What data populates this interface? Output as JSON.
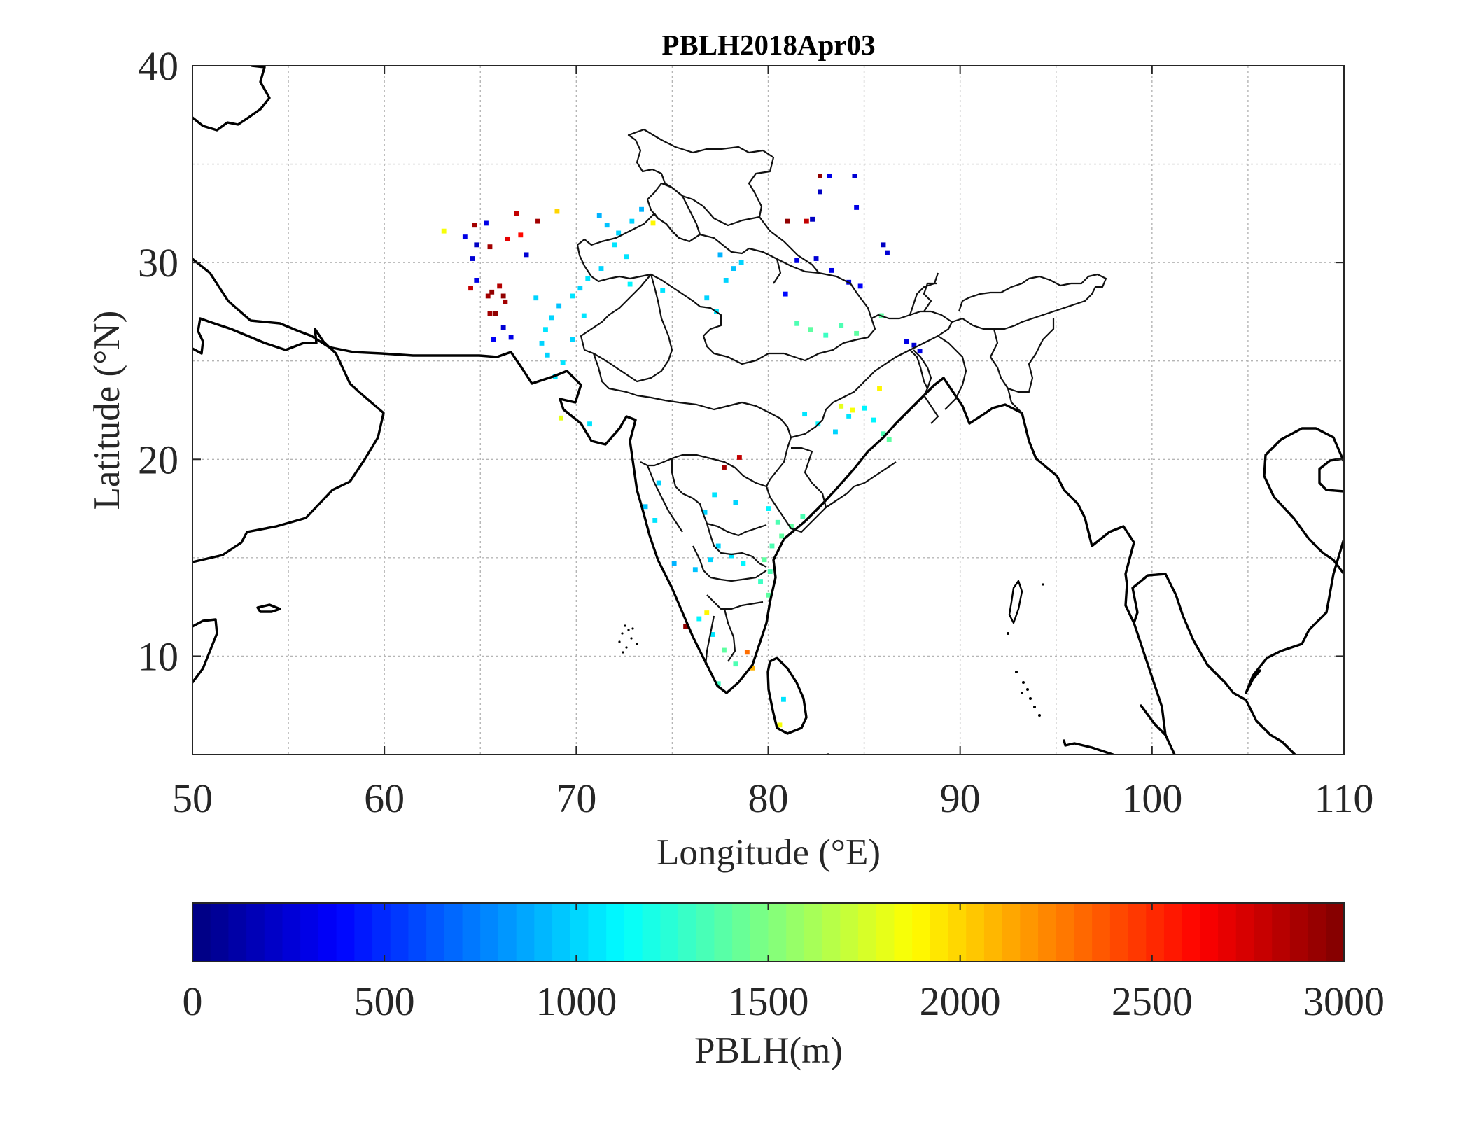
{
  "title": "PBLH2018Apr03",
  "xlabel": "Longitude (°E)",
  "ylabel": "Latitude (°N)",
  "colorbar_label": "PBLH(m)",
  "colormap": "jet",
  "chart_data": {
    "type": "heatmap",
    "title": "PBLH2018Apr03",
    "xlabel": "Longitude (°E)",
    "ylabel": "Latitude (°N)",
    "xlim": [
      50,
      110
    ],
    "ylim": [
      5,
      40
    ],
    "xticks": [
      50,
      60,
      70,
      80,
      90,
      100,
      110
    ],
    "yticks": [
      10,
      20,
      30,
      40
    ],
    "grid": true,
    "colorbar": {
      "label": "PBLH(m)",
      "range": [
        0,
        3000
      ],
      "ticks": [
        0,
        500,
        1000,
        1500,
        2000,
        2500,
        3000
      ],
      "position": "bottom"
    },
    "cell_size_deg": 0.25,
    "points": [
      {
        "lon": 65.4,
        "lat": 28.3,
        "pblh": 2900
      },
      {
        "lon": 65.6,
        "lat": 28.5,
        "pblh": 2950
      },
      {
        "lon": 66.0,
        "lat": 28.8,
        "pblh": 2850
      },
      {
        "lon": 66.2,
        "lat": 28.3,
        "pblh": 2950
      },
      {
        "lon": 65.8,
        "lat": 27.4,
        "pblh": 2950
      },
      {
        "lon": 65.5,
        "lat": 27.4,
        "pblh": 2900
      },
      {
        "lon": 66.3,
        "lat": 28.0,
        "pblh": 2900
      },
      {
        "lon": 65.5,
        "lat": 30.8,
        "pblh": 2900
      },
      {
        "lon": 66.4,
        "lat": 31.2,
        "pblh": 2700
      },
      {
        "lon": 67.1,
        "lat": 31.4,
        "pblh": 2600
      },
      {
        "lon": 66.9,
        "lat": 32.5,
        "pblh": 2800
      },
      {
        "lon": 64.7,
        "lat": 31.9,
        "pblh": 2900
      },
      {
        "lon": 64.5,
        "lat": 28.7,
        "pblh": 2800
      },
      {
        "lon": 64.2,
        "lat": 31.3,
        "pblh": 300
      },
      {
        "lon": 64.8,
        "lat": 30.9,
        "pblh": 200
      },
      {
        "lon": 65.3,
        "lat": 32.0,
        "pblh": 300
      },
      {
        "lon": 64.6,
        "lat": 30.2,
        "pblh": 250
      },
      {
        "lon": 66.2,
        "lat": 26.7,
        "pblh": 250
      },
      {
        "lon": 66.6,
        "lat": 26.2,
        "pblh": 300
      },
      {
        "lon": 65.7,
        "lat": 26.1,
        "pblh": 350
      },
      {
        "lon": 64.8,
        "lat": 29.1,
        "pblh": 300
      },
      {
        "lon": 67.4,
        "lat": 30.4,
        "pblh": 250
      },
      {
        "lon": 63.1,
        "lat": 31.6,
        "pblh": 1850
      },
      {
        "lon": 68.0,
        "lat": 32.1,
        "pblh": 2900
      },
      {
        "lon": 69.0,
        "lat": 32.6,
        "pblh": 2000
      },
      {
        "lon": 72.2,
        "lat": 31.5,
        "pblh": 1000
      },
      {
        "lon": 72.0,
        "lat": 30.9,
        "pblh": 1050
      },
      {
        "lon": 71.6,
        "lat": 31.9,
        "pblh": 950
      },
      {
        "lon": 71.2,
        "lat": 32.4,
        "pblh": 900
      },
      {
        "lon": 72.9,
        "lat": 32.1,
        "pblh": 1000
      },
      {
        "lon": 73.4,
        "lat": 32.7,
        "pblh": 900
      },
      {
        "lon": 72.6,
        "lat": 30.3,
        "pblh": 1050
      },
      {
        "lon": 71.3,
        "lat": 29.7,
        "pblh": 1000
      },
      {
        "lon": 70.6,
        "lat": 29.2,
        "pblh": 1050
      },
      {
        "lon": 70.2,
        "lat": 28.7,
        "pblh": 1000
      },
      {
        "lon": 69.8,
        "lat": 28.3,
        "pblh": 1050
      },
      {
        "lon": 69.1,
        "lat": 27.8,
        "pblh": 950
      },
      {
        "lon": 68.7,
        "lat": 27.2,
        "pblh": 1000
      },
      {
        "lon": 68.4,
        "lat": 26.6,
        "pblh": 1050
      },
      {
        "lon": 68.2,
        "lat": 25.9,
        "pblh": 1000
      },
      {
        "lon": 68.5,
        "lat": 25.3,
        "pblh": 1000
      },
      {
        "lon": 69.3,
        "lat": 24.9,
        "pblh": 1050
      },
      {
        "lon": 69.8,
        "lat": 26.1,
        "pblh": 1000
      },
      {
        "lon": 70.4,
        "lat": 27.3,
        "pblh": 1050
      },
      {
        "lon": 67.9,
        "lat": 28.2,
        "pblh": 1000
      },
      {
        "lon": 68.9,
        "lat": 24.2,
        "pblh": 1050
      },
      {
        "lon": 72.8,
        "lat": 28.9,
        "pblh": 1100
      },
      {
        "lon": 74.5,
        "lat": 28.6,
        "pblh": 1050
      },
      {
        "lon": 76.8,
        "lat": 28.2,
        "pblh": 1000
      },
      {
        "lon": 77.3,
        "lat": 27.5,
        "pblh": 1050
      },
      {
        "lon": 77.8,
        "lat": 29.1,
        "pblh": 1000
      },
      {
        "lon": 78.2,
        "lat": 29.7,
        "pblh": 950
      },
      {
        "lon": 77.5,
        "lat": 30.4,
        "pblh": 900
      },
      {
        "lon": 78.6,
        "lat": 30.0,
        "pblh": 1000
      },
      {
        "lon": 80.9,
        "lat": 28.4,
        "pblh": 400
      },
      {
        "lon": 81.5,
        "lat": 30.1,
        "pblh": 300
      },
      {
        "lon": 82.5,
        "lat": 30.2,
        "pblh": 250
      },
      {
        "lon": 83.3,
        "lat": 29.6,
        "pblh": 300
      },
      {
        "lon": 84.2,
        "lat": 29.0,
        "pblh": 300
      },
      {
        "lon": 84.8,
        "lat": 28.8,
        "pblh": 350
      },
      {
        "lon": 86.0,
        "lat": 30.9,
        "pblh": 200
      },
      {
        "lon": 86.2,
        "lat": 30.5,
        "pblh": 250
      },
      {
        "lon": 82.7,
        "lat": 33.6,
        "pblh": 200
      },
      {
        "lon": 83.2,
        "lat": 34.4,
        "pblh": 300
      },
      {
        "lon": 84.5,
        "lat": 34.4,
        "pblh": 250
      },
      {
        "lon": 84.6,
        "lat": 32.8,
        "pblh": 300
      },
      {
        "lon": 82.3,
        "lat": 32.2,
        "pblh": 200
      },
      {
        "lon": 82.7,
        "lat": 34.4,
        "pblh": 2950
      },
      {
        "lon": 82.0,
        "lat": 32.1,
        "pblh": 2800
      },
      {
        "lon": 81.0,
        "lat": 32.1,
        "pblh": 2950
      },
      {
        "lon": 81.5,
        "lat": 26.9,
        "pblh": 1350
      },
      {
        "lon": 82.2,
        "lat": 26.6,
        "pblh": 1400
      },
      {
        "lon": 83.0,
        "lat": 26.3,
        "pblh": 1300
      },
      {
        "lon": 83.8,
        "lat": 26.8,
        "pblh": 1350
      },
      {
        "lon": 84.6,
        "lat": 26.4,
        "pblh": 1400
      },
      {
        "lon": 85.9,
        "lat": 27.3,
        "pblh": 1400
      },
      {
        "lon": 87.2,
        "lat": 26.0,
        "pblh": 300
      },
      {
        "lon": 87.6,
        "lat": 25.8,
        "pblh": 250
      },
      {
        "lon": 87.9,
        "lat": 25.5,
        "pblh": 300
      },
      {
        "lon": 81.9,
        "lat": 22.3,
        "pblh": 1050
      },
      {
        "lon": 82.6,
        "lat": 21.8,
        "pblh": 1100
      },
      {
        "lon": 83.5,
        "lat": 21.4,
        "pblh": 1000
      },
      {
        "lon": 84.2,
        "lat": 22.2,
        "pblh": 1050
      },
      {
        "lon": 85.0,
        "lat": 22.6,
        "pblh": 1100
      },
      {
        "lon": 85.5,
        "lat": 22.0,
        "pblh": 1100
      },
      {
        "lon": 86.0,
        "lat": 21.3,
        "pblh": 1350
      },
      {
        "lon": 86.3,
        "lat": 21.0,
        "pblh": 1400
      },
      {
        "lon": 83.8,
        "lat": 22.7,
        "pblh": 1800
      },
      {
        "lon": 84.4,
        "lat": 22.5,
        "pblh": 1850
      },
      {
        "lon": 85.8,
        "lat": 23.6,
        "pblh": 1900
      },
      {
        "lon": 80.0,
        "lat": 17.5,
        "pblh": 1100
      },
      {
        "lon": 80.5,
        "lat": 16.8,
        "pblh": 1350
      },
      {
        "lon": 81.2,
        "lat": 16.6,
        "pblh": 1400
      },
      {
        "lon": 81.8,
        "lat": 17.1,
        "pblh": 1350
      },
      {
        "lon": 80.7,
        "lat": 16.1,
        "pblh": 1400
      },
      {
        "lon": 80.2,
        "lat": 15.6,
        "pblh": 1350
      },
      {
        "lon": 79.8,
        "lat": 14.9,
        "pblh": 1400
      },
      {
        "lon": 80.1,
        "lat": 14.3,
        "pblh": 1350
      },
      {
        "lon": 79.6,
        "lat": 13.8,
        "pblh": 1300
      },
      {
        "lon": 80.0,
        "lat": 13.1,
        "pblh": 1400
      },
      {
        "lon": 77.4,
        "lat": 15.6,
        "pblh": 1000
      },
      {
        "lon": 78.1,
        "lat": 15.1,
        "pblh": 1050
      },
      {
        "lon": 78.7,
        "lat": 14.7,
        "pblh": 1100
      },
      {
        "lon": 77.0,
        "lat": 14.9,
        "pblh": 1000
      },
      {
        "lon": 76.2,
        "lat": 14.4,
        "pblh": 950
      },
      {
        "lon": 75.1,
        "lat": 14.7,
        "pblh": 900
      },
      {
        "lon": 78.3,
        "lat": 17.8,
        "pblh": 1000
      },
      {
        "lon": 77.2,
        "lat": 18.2,
        "pblh": 1050
      },
      {
        "lon": 76.7,
        "lat": 17.3,
        "pblh": 1000
      },
      {
        "lon": 74.1,
        "lat": 16.9,
        "pblh": 1050
      },
      {
        "lon": 74.3,
        "lat": 18.8,
        "pblh": 1000
      },
      {
        "lon": 73.6,
        "lat": 17.6,
        "pblh": 950
      },
      {
        "lon": 77.7,
        "lat": 19.6,
        "pblh": 2900
      },
      {
        "lon": 78.5,
        "lat": 20.1,
        "pblh": 2800
      },
      {
        "lon": 76.4,
        "lat": 11.9,
        "pblh": 1100
      },
      {
        "lon": 77.1,
        "lat": 11.1,
        "pblh": 1050
      },
      {
        "lon": 77.7,
        "lat": 10.3,
        "pblh": 1400
      },
      {
        "lon": 78.3,
        "lat": 9.6,
        "pblh": 1350
      },
      {
        "lon": 77.4,
        "lat": 8.6,
        "pblh": 1300
      },
      {
        "lon": 78.9,
        "lat": 10.2,
        "pblh": 2300
      },
      {
        "lon": 79.2,
        "lat": 9.4,
        "pblh": 2100
      },
      {
        "lon": 76.8,
        "lat": 12.2,
        "pblh": 1900
      },
      {
        "lon": 75.7,
        "lat": 11.5,
        "pblh": 2950
      },
      {
        "lon": 80.8,
        "lat": 7.8,
        "pblh": 1050
      },
      {
        "lon": 80.6,
        "lat": 6.5,
        "pblh": 1850
      },
      {
        "lon": 74.0,
        "lat": 32.0,
        "pblh": 1900
      },
      {
        "lon": 69.2,
        "lat": 22.1,
        "pblh": 1800
      },
      {
        "lon": 70.7,
        "lat": 21.8,
        "pblh": 1050
      }
    ]
  }
}
